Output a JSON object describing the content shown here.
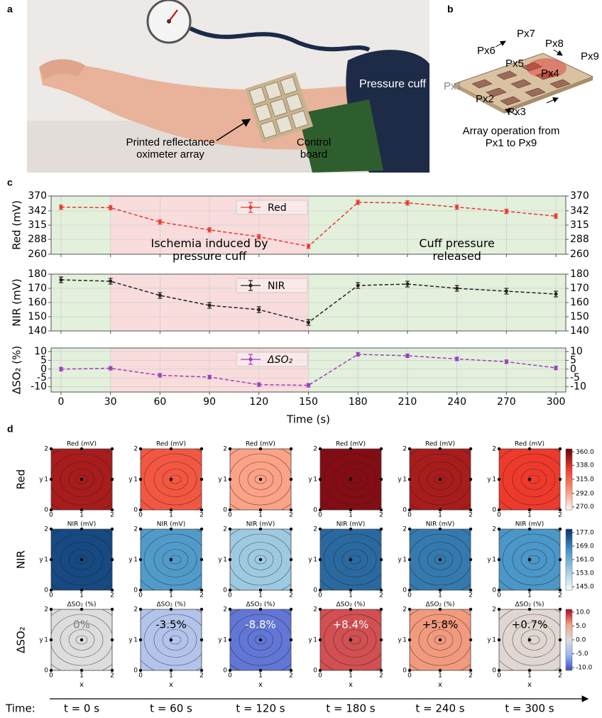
{
  "panel_labels": [
    "a",
    "b",
    "c",
    "d"
  ],
  "photo": {
    "labels": [
      "Pressure cuff",
      "Printed reflectance oximeter array",
      "Control board"
    ]
  },
  "array_diagram": {
    "pixels": [
      "Px1",
      "Px2",
      "Px3",
      "Px4",
      "Px5",
      "Px6",
      "Px7",
      "Px8",
      "Px9"
    ],
    "caption": "Array operation from Px1 to Px9"
  },
  "chart_data": [
    {
      "type": "line",
      "ylabel": "Red (mV)",
      "x": [
        0,
        30,
        60,
        90,
        120,
        150,
        180,
        210,
        240,
        270,
        300
      ],
      "xlim": [
        -6,
        306
      ],
      "xticks": [
        0,
        30,
        60,
        90,
        120,
        150,
        180,
        210,
        240,
        270,
        300
      ],
      "ylim": [
        260,
        370
      ],
      "yticks": [
        260,
        288,
        315,
        342,
        370
      ],
      "grid": true,
      "legend": "upper center",
      "background": "#e3f0dc",
      "shaded_regions": [
        {
          "from": 30,
          "to": 150,
          "color": "#f9dcdc"
        }
      ],
      "annotations": [
        "Ischemia induced by pressure cuff",
        "Cuff pressure released"
      ],
      "series": [
        {
          "name": "Red",
          "color": "#e8382f",
          "values": [
            349,
            348,
            321,
            306,
            293,
            275,
            358,
            357,
            349,
            341,
            332
          ],
          "errors": [
            4,
            4,
            4,
            4,
            4,
            4,
            4,
            4,
            4,
            4,
            4
          ]
        }
      ]
    },
    {
      "type": "line",
      "ylabel": "NIR (mV)",
      "x": [
        0,
        30,
        60,
        90,
        120,
        150,
        180,
        210,
        240,
        270,
        300
      ],
      "xlim": [
        -6,
        306
      ],
      "xticks": [
        0,
        30,
        60,
        90,
        120,
        150,
        180,
        210,
        240,
        270,
        300
      ],
      "ylim": [
        140,
        180
      ],
      "yticks": [
        140,
        150,
        160,
        170,
        180
      ],
      "grid": true,
      "legend": "upper center",
      "background": "#e3f0dc",
      "shaded_regions": [
        {
          "from": 30,
          "to": 150,
          "color": "#f9dcdc"
        }
      ],
      "series": [
        {
          "name": "NIR",
          "color": "#222222",
          "values": [
            176,
            175,
            165,
            158,
            155,
            146,
            172,
            173,
            170,
            168,
            166
          ],
          "errors": [
            2,
            2,
            2,
            2,
            2,
            2,
            2,
            2,
            2,
            2,
            2
          ]
        }
      ]
    },
    {
      "type": "line",
      "ylabel": "ΔSO₂ (%)",
      "xlabel": "Time (s)",
      "x": [
        0,
        30,
        60,
        90,
        120,
        150,
        180,
        210,
        240,
        270,
        300
      ],
      "xlim": [
        -6,
        306
      ],
      "xticks": [
        0,
        30,
        60,
        90,
        120,
        150,
        180,
        210,
        240,
        270,
        300
      ],
      "ylim": [
        -13,
        12
      ],
      "yticks": [
        -10,
        -5,
        0,
        5,
        10
      ],
      "grid": true,
      "legend": "upper center",
      "background": "#e3f0dc",
      "shaded_regions": [
        {
          "from": 30,
          "to": 150,
          "color": "#f9dcdc"
        }
      ],
      "series": [
        {
          "name": "ΔSO₂",
          "color": "#9b3fc0",
          "values": [
            0,
            0.5,
            -3.5,
            -4.5,
            -8.8,
            -9.2,
            8.4,
            7.6,
            5.8,
            4.2,
            0.7
          ],
          "errors": [
            1,
            1,
            1,
            1,
            1,
            1,
            1,
            1,
            1,
            1,
            1
          ]
        }
      ]
    }
  ],
  "heatmaps": {
    "row_labels": [
      "Red",
      "NIR",
      "ΔSO₂"
    ],
    "times": [
      "t = 0 s",
      "t = 60 s",
      "t = 120 s",
      "t = 180 s",
      "t = 240 s",
      "t = 300 s"
    ],
    "time_label": "Time:",
    "x_label": "x",
    "y_label": "y",
    "axis_ticks": [
      0,
      1,
      2
    ],
    "rows": [
      {
        "title": "Red (mV)",
        "values": [
          349,
          321,
          293,
          358,
          349,
          332
        ],
        "lim": [
          265,
          365
        ],
        "colormap": [
          "#fff5f0",
          "#fc9272",
          "#ef3b2c",
          "#67000d"
        ],
        "colorbar_ticks": [
          {
            "value": 270,
            "label": "270.0"
          },
          {
            "value": 292,
            "label": "292.0"
          },
          {
            "value": 315,
            "label": "315.0"
          },
          {
            "value": 338,
            "label": "338.0"
          },
          {
            "value": 360,
            "label": "360.0"
          }
        ]
      },
      {
        "title": "NIR (mV)",
        "values": [
          176,
          165,
          155,
          172,
          170,
          166
        ],
        "lim": [
          143,
          179
        ],
        "colormap": [
          "#f7fbff",
          "#9ecae1",
          "#4292c6",
          "#08306b"
        ],
        "colorbar_ticks": [
          {
            "value": 145,
            "label": "145.0"
          },
          {
            "value": 153,
            "label": "153.0"
          },
          {
            "value": 161,
            "label": "161.0"
          },
          {
            "value": 169,
            "label": "169.0"
          },
          {
            "value": 177,
            "label": "177.0"
          }
        ]
      },
      {
        "title": "ΔSO₂ (%)",
        "values": [
          0,
          -3.5,
          -8.8,
          8.4,
          5.8,
          0.7
        ],
        "value_labels": [
          "0%",
          "-3.5%",
          "-8.8%",
          "+8.4%",
          "+5.8%",
          "+0.7%"
        ],
        "lim": [
          -11,
          11
        ],
        "colormap": [
          "#3b4cc0",
          "#9bb6f5",
          "#dddddd",
          "#f4a383",
          "#b40426"
        ],
        "colorbar_ticks": [
          {
            "value": -10,
            "label": "-10.0"
          },
          {
            "value": -5,
            "label": "-5.0"
          },
          {
            "value": 0,
            "label": "0.0"
          },
          {
            "value": 5,
            "label": "5.0"
          },
          {
            "value": 10,
            "label": "10.0"
          }
        ]
      }
    ]
  }
}
